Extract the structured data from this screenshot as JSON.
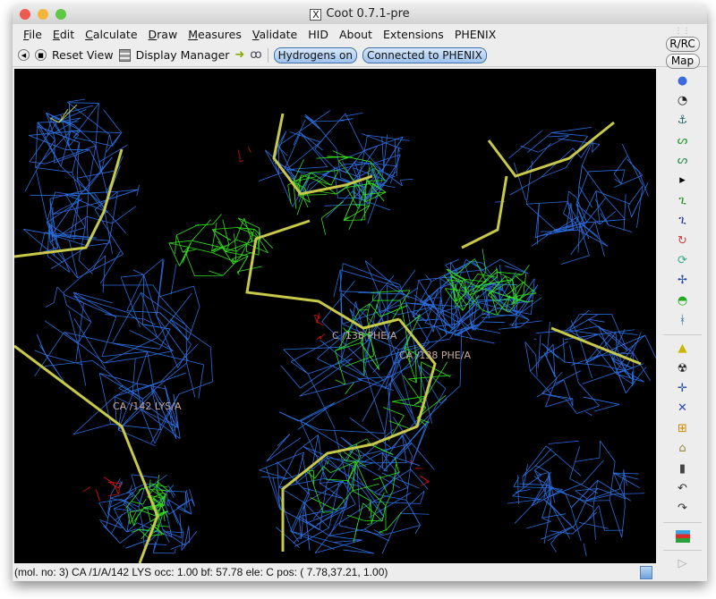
{
  "window": {
    "title": "Coot 0.7.1-pre",
    "x_icon": "X"
  },
  "menu": [
    {
      "label": "File",
      "u": "F",
      "rest": "ile"
    },
    {
      "label": "Edit",
      "u": "E",
      "rest": "dit"
    },
    {
      "label": "Calculate",
      "u": "C",
      "rest": "alculate"
    },
    {
      "label": "Draw",
      "u": "D",
      "rest": "raw"
    },
    {
      "label": "Measures",
      "u": "M",
      "rest": "easures"
    },
    {
      "label": "Validate",
      "u": "V",
      "rest": "alidate"
    },
    {
      "label": "HID",
      "u": "",
      "rest": "HID"
    },
    {
      "label": "About",
      "u": "",
      "rest": "About"
    },
    {
      "label": "Extensions",
      "u": "",
      "rest": "Extensions"
    },
    {
      "label": "PHENIX",
      "u": "",
      "rest": "PHENIX"
    }
  ],
  "toolbar": {
    "reset_view": "Reset View",
    "display_manager": "Display Manager",
    "hydrogens": "Hydrogens on",
    "phenix": "Connected to PHENIX"
  },
  "sidebar": {
    "rrc": "R/RC",
    "map": "Map",
    "icons": [
      "rotate-translate-icon",
      "refine-zone-icon",
      "regularize-icon",
      "rigid-body-fit-icon",
      "real-space-refine-icon",
      "arrow-icon",
      "auto-fit-rotamer-icon",
      "rotamers-icon",
      "edit-chi-angles-icon",
      "torsion-general-icon",
      "flip-peptide-icon",
      "side-chain-180-icon",
      "cis-trans-icon"
    ],
    "icons2": [
      "add-terminal-residue-icon",
      "mutate-auto-fit-icon",
      "add-atom-icon",
      "add-alt-conf-icon",
      "place-atom-icon",
      "clear-pending-icon",
      "delete-icon",
      "undo-icon",
      "redo-icon"
    ],
    "flag_icon": "display-manager-flag-icon",
    "play_icon": "play-icon"
  },
  "canvas": {
    "labels": [
      "C /138 PHE/A",
      "CA /138 PHE/A",
      "CA /142 LYS/A"
    ],
    "colors": {
      "map_blue": "#2b6fe0",
      "diff_green": "#33e01c",
      "diff_red": "#d01010",
      "bonds": "#c8c84a"
    }
  },
  "status": "(mol. no: 3)  CA /1/A/142 LYS occ:  1.00 bf: 57.78 ele:  C pos: ( 7.78,37.21, 1.00)"
}
